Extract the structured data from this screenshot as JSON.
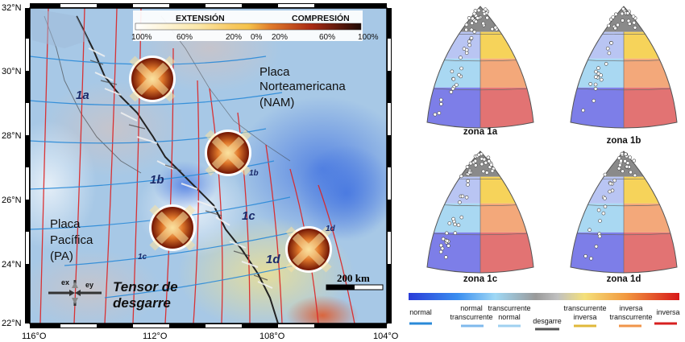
{
  "map": {
    "lat_labels": [
      "32°N",
      "30°N",
      "28°N",
      "26°N",
      "24°N",
      "22°N"
    ],
    "lon_labels": [
      "116°O",
      "112°O",
      "108°O",
      "104°O"
    ],
    "colorbar": {
      "extension_label": "EXTENSIÓN",
      "compression_label": "COMPRESIÓN",
      "ticks": [
        "100%",
        "60%",
        "20%",
        "0%",
        "20%",
        "60%",
        "100%"
      ]
    },
    "plate_labels": {
      "north_american": [
        "Placa",
        "Norteamericana",
        "(NAM)"
      ],
      "pacific": [
        "Placa",
        "Pacífica",
        "(PA)"
      ]
    },
    "zone_labels": {
      "z1a": "1a",
      "z1b": "1b",
      "z1b_small": "1b",
      "z1c": "1c",
      "z1c_small": "1c",
      "z1d": "1d",
      "z1d_small": "1d"
    },
    "scale_bar_label": "200 km",
    "tensor_legend": {
      "ex": "ex",
      "ey": "ey",
      "title_line1": "Tensor de",
      "title_line2": "desgarre"
    }
  },
  "triangles": [
    {
      "label": "zona 1a"
    },
    {
      "label": "zona 1b"
    },
    {
      "label": "zona 1c"
    },
    {
      "label": "zona 1d"
    }
  ],
  "legend": {
    "normal": "normal",
    "normal_transcurrente": [
      "normal",
      "transcurrente"
    ],
    "transcurrente_normal": [
      "transcurrente",
      "normal"
    ],
    "desgarre": "desgarre",
    "transcurrente_inversa": [
      "transcurrente",
      "inversa"
    ],
    "inversa_transcurrente": [
      "inversa",
      "transcurrente"
    ],
    "inversa": "inversa"
  },
  "colors": {
    "normal": "#7d7ee8",
    "normal_transcurrente": "#b9c5f3",
    "transcurrente": "#a9d8f2",
    "transcurrente_inversa": "#f6d35a",
    "inversa_transcurrente": "#f3a87a",
    "inversa": "#e27373",
    "desgarre": "#8a8a8a"
  }
}
